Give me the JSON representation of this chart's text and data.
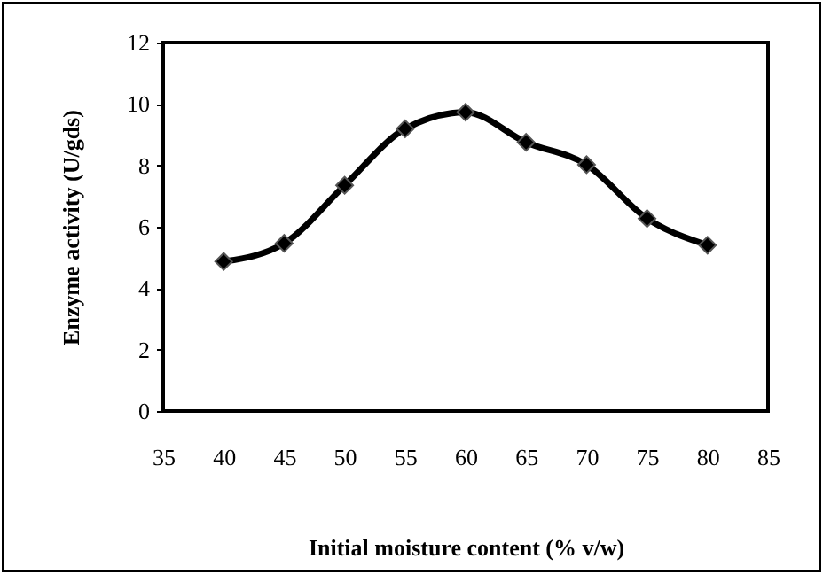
{
  "chart_data": {
    "type": "line",
    "xlabel": "Initial moisture content (% v/w)",
    "ylabel": "Enzyme activity (U/gds)",
    "x": [
      40,
      45,
      50,
      55,
      60,
      65,
      70,
      75,
      80
    ],
    "series": [
      {
        "color": "#000000",
        "values": [
          4.87,
          5.46,
          7.35,
          9.19,
          9.73,
          8.75,
          8.02,
          6.27,
          5.4
        ]
      }
    ],
    "xlim": [
      35,
      85
    ],
    "xticks": [
      35,
      40,
      45,
      50,
      55,
      60,
      65,
      70,
      75,
      80,
      85
    ],
    "ylim": [
      0,
      12
    ],
    "yticks": [
      0,
      2,
      4,
      6,
      8,
      10,
      12
    ],
    "grid": false,
    "marker": "diamond",
    "line_style": "solid",
    "legend": false
  }
}
